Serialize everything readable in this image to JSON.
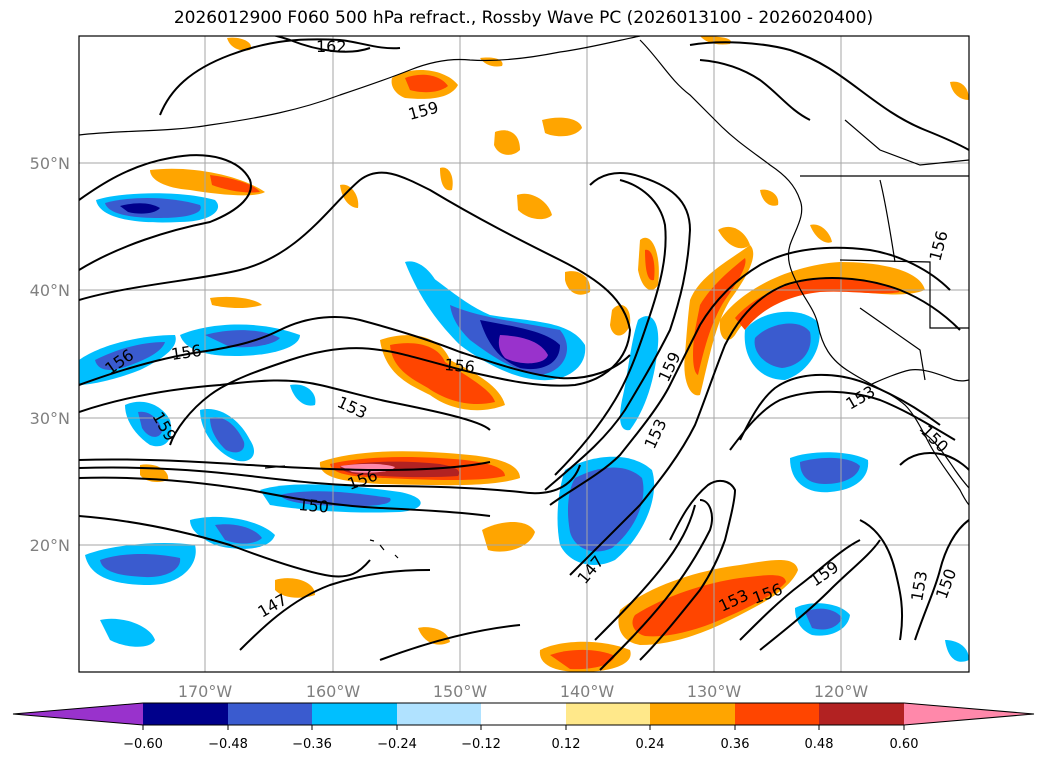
{
  "title": "2026012900 F060 500 hPa refract., Rossby Wave PC (2026013100 - 2026020400)",
  "lat_labels": [
    "50°N",
    "40°N",
    "30°N",
    "20°N"
  ],
  "lon_labels": [
    "170°W",
    "160°W",
    "150°W",
    "140°W",
    "130°W",
    "120°W"
  ],
  "colorbar": {
    "ticks": [
      "−0.60",
      "−0.48",
      "−0.36",
      "−0.24",
      "−0.12",
      "0.12",
      "0.24",
      "0.36",
      "0.48",
      "0.60"
    ],
    "colors": [
      "#9932cc",
      "#00008b",
      "#3a5bcf",
      "#00bfff",
      "#b0e2ff",
      "#ffffff",
      "#ffe88a",
      "#ffa500",
      "#ff4500",
      "#b22222",
      "#ff88aa"
    ]
  },
  "contour_labels": [
    "162",
    "159",
    "156",
    "156",
    "159",
    "156",
    "153",
    "156",
    "150",
    "147",
    "159",
    "153",
    "147",
    "153",
    "156",
    "159",
    "153",
    "150",
    "156",
    "153",
    "150"
  ]
}
